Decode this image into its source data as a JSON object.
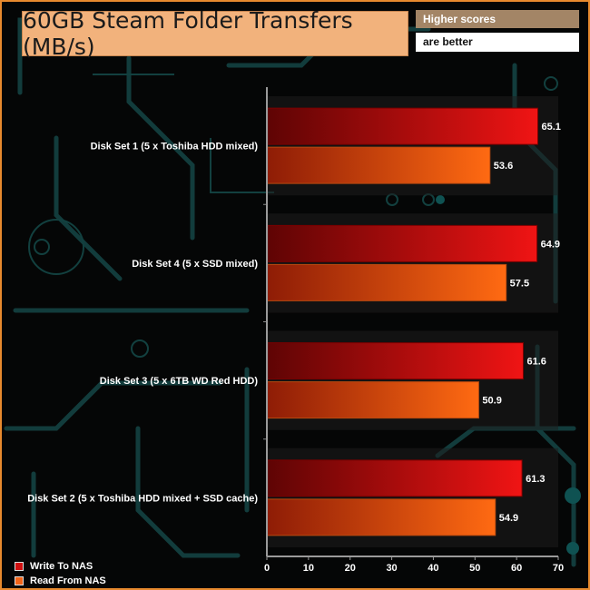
{
  "header": {
    "title": "60GB Steam Folder Transfers (MB/s)",
    "note_line1": "Higher scores",
    "note_line2": "are better"
  },
  "colors": {
    "write": "#d01010",
    "read": "#f26418",
    "accent": "#e88a2e"
  },
  "chart_data": {
    "type": "bar",
    "orientation": "horizontal",
    "title": "60GB Steam Folder Transfers (MB/s)",
    "categories": [
      "Disk Set 1 (5 x Toshiba HDD mixed)",
      "Disk Set 4 (5 x SSD mixed)",
      "Disk Set 3 (5 x 6TB WD Red HDD)",
      "Disk Set 2 (5 x Toshiba HDD mixed + SSD cache)"
    ],
    "series": [
      {
        "name": "Write To NAS",
        "values": [
          65.1,
          64.9,
          61.6,
          61.3
        ]
      },
      {
        "name": "Read From NAS",
        "values": [
          53.6,
          57.5,
          50.9,
          54.9
        ]
      }
    ],
    "xlim": [
      0,
      70
    ],
    "xticks": [
      0,
      10,
      20,
      30,
      40,
      50,
      60,
      70
    ],
    "grid": false,
    "legend_position": "bottom-left"
  }
}
